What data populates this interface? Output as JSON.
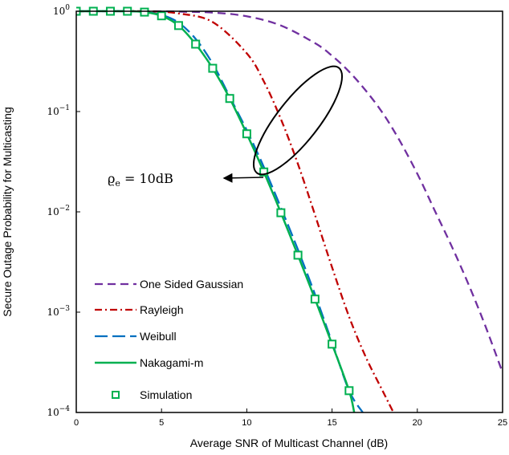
{
  "chart_data": {
    "type": "line",
    "title": "",
    "xlabel": "Average SNR of Multicast Channel (dB)",
    "ylabel": "Secure Outage Probability for Multicasting",
    "xlim": [
      0,
      25
    ],
    "ylim": [
      0.0001,
      1
    ],
    "yscale": "log",
    "grid": false,
    "legend_position": "bottom-left",
    "x_ticks": [
      "0",
      "5",
      "10",
      "15",
      "20",
      "25"
    ],
    "y_ticks": [
      {
        "base": "10",
        "exp": "0",
        "value": 1
      },
      {
        "base": "10",
        "exp": "−1",
        "value": 0.1
      },
      {
        "base": "10",
        "exp": "−2",
        "value": 0.01
      },
      {
        "base": "10",
        "exp": "−3",
        "value": 0.001
      },
      {
        "base": "10",
        "exp": "−4",
        "value": 0.0001
      }
    ],
    "annotation": {
      "text": "ϱe = 10dB",
      "base": "ϱ",
      "sub": "e",
      "rest": " = 10dB"
    },
    "series": [
      {
        "name": "One Sided Gaussian",
        "style": "dashed",
        "color": "#7030A0",
        "x": [
          0,
          4,
          6,
          8,
          10,
          12,
          14,
          15,
          16,
          17,
          18,
          19,
          20,
          21,
          22,
          23,
          24,
          25
        ],
        "y": [
          1,
          1,
          0.99,
          0.97,
          0.89,
          0.72,
          0.48,
          0.36,
          0.25,
          0.16,
          0.095,
          0.05,
          0.024,
          0.0105,
          0.0046,
          0.0019,
          0.00072,
          0.00025
        ]
      },
      {
        "name": "Rayleigh",
        "style": "dash-dot",
        "color": "#C00000",
        "x": [
          0,
          4,
          6,
          8,
          10,
          11,
          12,
          13,
          14,
          15,
          16,
          17,
          18,
          18.6
        ],
        "y": [
          1,
          1,
          0.95,
          0.78,
          0.38,
          0.2,
          0.084,
          0.03,
          0.0093,
          0.0028,
          0.0009,
          0.00035,
          0.00016,
          0.0001
        ]
      },
      {
        "name": "Weibull",
        "style": "long-dash",
        "color": "#0070C0",
        "x": [
          0,
          3,
          4,
          5,
          6,
          7,
          8,
          9,
          10,
          11,
          12,
          13,
          14,
          15,
          16,
          16.8
        ],
        "y": [
          1,
          1,
          0.98,
          0.92,
          0.77,
          0.53,
          0.3,
          0.14,
          0.065,
          0.028,
          0.011,
          0.0042,
          0.0015,
          0.0005,
          0.000165,
          0.0001
        ]
      },
      {
        "name": "Nakagami-m",
        "style": "solid",
        "color": "#00B050",
        "x": [
          0,
          3,
          4,
          5,
          6,
          7,
          8,
          9,
          10,
          11,
          12,
          13,
          14,
          15,
          16,
          16.3
        ],
        "y": [
          1,
          1,
          0.98,
          0.9,
          0.72,
          0.47,
          0.27,
          0.135,
          0.06,
          0.025,
          0.0098,
          0.0037,
          0.00135,
          0.00048,
          0.000165,
          0.0001
        ]
      },
      {
        "name": "Simulation",
        "style": "markers",
        "color": "#00B050",
        "x": [
          0,
          1,
          2,
          3,
          4,
          5,
          6,
          7,
          8,
          9,
          10,
          11,
          12,
          13,
          14,
          15,
          16
        ],
        "y": [
          1,
          1,
          1,
          1,
          0.98,
          0.9,
          0.72,
          0.47,
          0.27,
          0.135,
          0.06,
          0.025,
          0.0098,
          0.0037,
          0.00135,
          0.00048,
          0.000165
        ]
      }
    ]
  }
}
